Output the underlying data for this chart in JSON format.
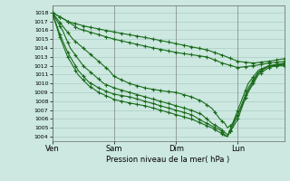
{
  "xlabel": "Pression niveau de la mer( hPa )",
  "ylim": [
    1003.5,
    1018.8
  ],
  "yticks": [
    1004,
    1005,
    1006,
    1007,
    1008,
    1009,
    1010,
    1011,
    1012,
    1013,
    1014,
    1015,
    1016,
    1017,
    1018
  ],
  "day_labels": [
    "Ven",
    "Sam",
    "Dim",
    "Lun"
  ],
  "day_positions": [
    0,
    24,
    48,
    72
  ],
  "xlim": [
    0,
    90
  ],
  "bg_color": "#cce8e0",
  "grid_color": "#aaccc4",
  "line_color": "#1a6b1a",
  "line_width": 0.8,
  "marker_size": 3.5,
  "lines": [
    [
      [
        0,
        1018
      ],
      [
        6,
        1017
      ],
      [
        12,
        1016.5
      ],
      [
        24,
        1015.8
      ],
      [
        36,
        1015.2
      ],
      [
        48,
        1014.5
      ],
      [
        60,
        1013.8
      ],
      [
        66,
        1013.2
      ],
      [
        72,
        1012.5
      ],
      [
        78,
        1012.3
      ],
      [
        84,
        1012.5
      ],
      [
        90,
        1012.8
      ]
    ],
    [
      [
        0,
        1018
      ],
      [
        5,
        1017.2
      ],
      [
        10,
        1016.2
      ],
      [
        18,
        1015.5
      ],
      [
        24,
        1015.0
      ],
      [
        36,
        1014.2
      ],
      [
        48,
        1013.5
      ],
      [
        60,
        1013.0
      ],
      [
        66,
        1012.3
      ],
      [
        72,
        1011.8
      ],
      [
        78,
        1012.0
      ],
      [
        84,
        1012.3
      ],
      [
        90,
        1012.5
      ]
    ],
    [
      [
        0,
        1018
      ],
      [
        4,
        1016.5
      ],
      [
        8,
        1015.0
      ],
      [
        14,
        1013.5
      ],
      [
        18,
        1012.5
      ],
      [
        22,
        1011.5
      ],
      [
        24,
        1010.8
      ],
      [
        30,
        1010.0
      ],
      [
        36,
        1009.5
      ],
      [
        42,
        1009.2
      ],
      [
        48,
        1009.0
      ],
      [
        54,
        1008.5
      ],
      [
        58,
        1008.0
      ],
      [
        62,
        1007.2
      ],
      [
        65,
        1006.0
      ],
      [
        67,
        1005.5
      ],
      [
        68,
        1005.0
      ],
      [
        70,
        1005.5
      ],
      [
        72,
        1006.5
      ],
      [
        76,
        1009.0
      ],
      [
        80,
        1011.0
      ],
      [
        84,
        1011.8
      ],
      [
        90,
        1012.2
      ]
    ],
    [
      [
        0,
        1018
      ],
      [
        4,
        1016.0
      ],
      [
        7,
        1014.0
      ],
      [
        12,
        1012.0
      ],
      [
        16,
        1011.0
      ],
      [
        20,
        1010.0
      ],
      [
        24,
        1009.5
      ],
      [
        30,
        1009.0
      ],
      [
        36,
        1008.5
      ],
      [
        42,
        1008.0
      ],
      [
        48,
        1007.5
      ],
      [
        54,
        1007.0
      ],
      [
        58,
        1006.5
      ],
      [
        62,
        1005.5
      ],
      [
        65,
        1005.0
      ],
      [
        67,
        1004.5
      ],
      [
        68,
        1004.2
      ],
      [
        70,
        1005.0
      ],
      [
        72,
        1006.0
      ],
      [
        76,
        1009.2
      ],
      [
        80,
        1011.2
      ],
      [
        84,
        1012.0
      ],
      [
        90,
        1012.3
      ]
    ],
    [
      [
        0,
        1018
      ],
      [
        3,
        1015.5
      ],
      [
        6,
        1013.5
      ],
      [
        10,
        1011.5
      ],
      [
        14,
        1010.2
      ],
      [
        18,
        1009.5
      ],
      [
        22,
        1009.0
      ],
      [
        24,
        1008.8
      ],
      [
        30,
        1008.5
      ],
      [
        36,
        1008.0
      ],
      [
        42,
        1007.5
      ],
      [
        48,
        1007.0
      ],
      [
        54,
        1006.5
      ],
      [
        58,
        1005.8
      ],
      [
        62,
        1005.2
      ],
      [
        65,
        1004.8
      ],
      [
        67,
        1004.2
      ],
      [
        68,
        1004.0
      ],
      [
        70,
        1005.2
      ],
      [
        72,
        1006.5
      ],
      [
        76,
        1009.5
      ],
      [
        80,
        1011.3
      ],
      [
        84,
        1012.0
      ],
      [
        90,
        1012.2
      ]
    ],
    [
      [
        0,
        1018
      ],
      [
        3,
        1015.2
      ],
      [
        6,
        1013.0
      ],
      [
        10,
        1011.0
      ],
      [
        14,
        1009.8
      ],
      [
        18,
        1009.0
      ],
      [
        22,
        1008.5
      ],
      [
        24,
        1008.2
      ],
      [
        30,
        1007.8
      ],
      [
        36,
        1007.5
      ],
      [
        42,
        1007.0
      ],
      [
        48,
        1006.5
      ],
      [
        54,
        1006.0
      ],
      [
        58,
        1005.5
      ],
      [
        62,
        1005.0
      ],
      [
        65,
        1004.5
      ],
      [
        67,
        1004.1
      ],
      [
        68,
        1004.05
      ],
      [
        70,
        1005.5
      ],
      [
        72,
        1007.0
      ],
      [
        76,
        1010.0
      ],
      [
        80,
        1011.5
      ],
      [
        84,
        1012.0
      ],
      [
        90,
        1012.0
      ]
    ]
  ]
}
